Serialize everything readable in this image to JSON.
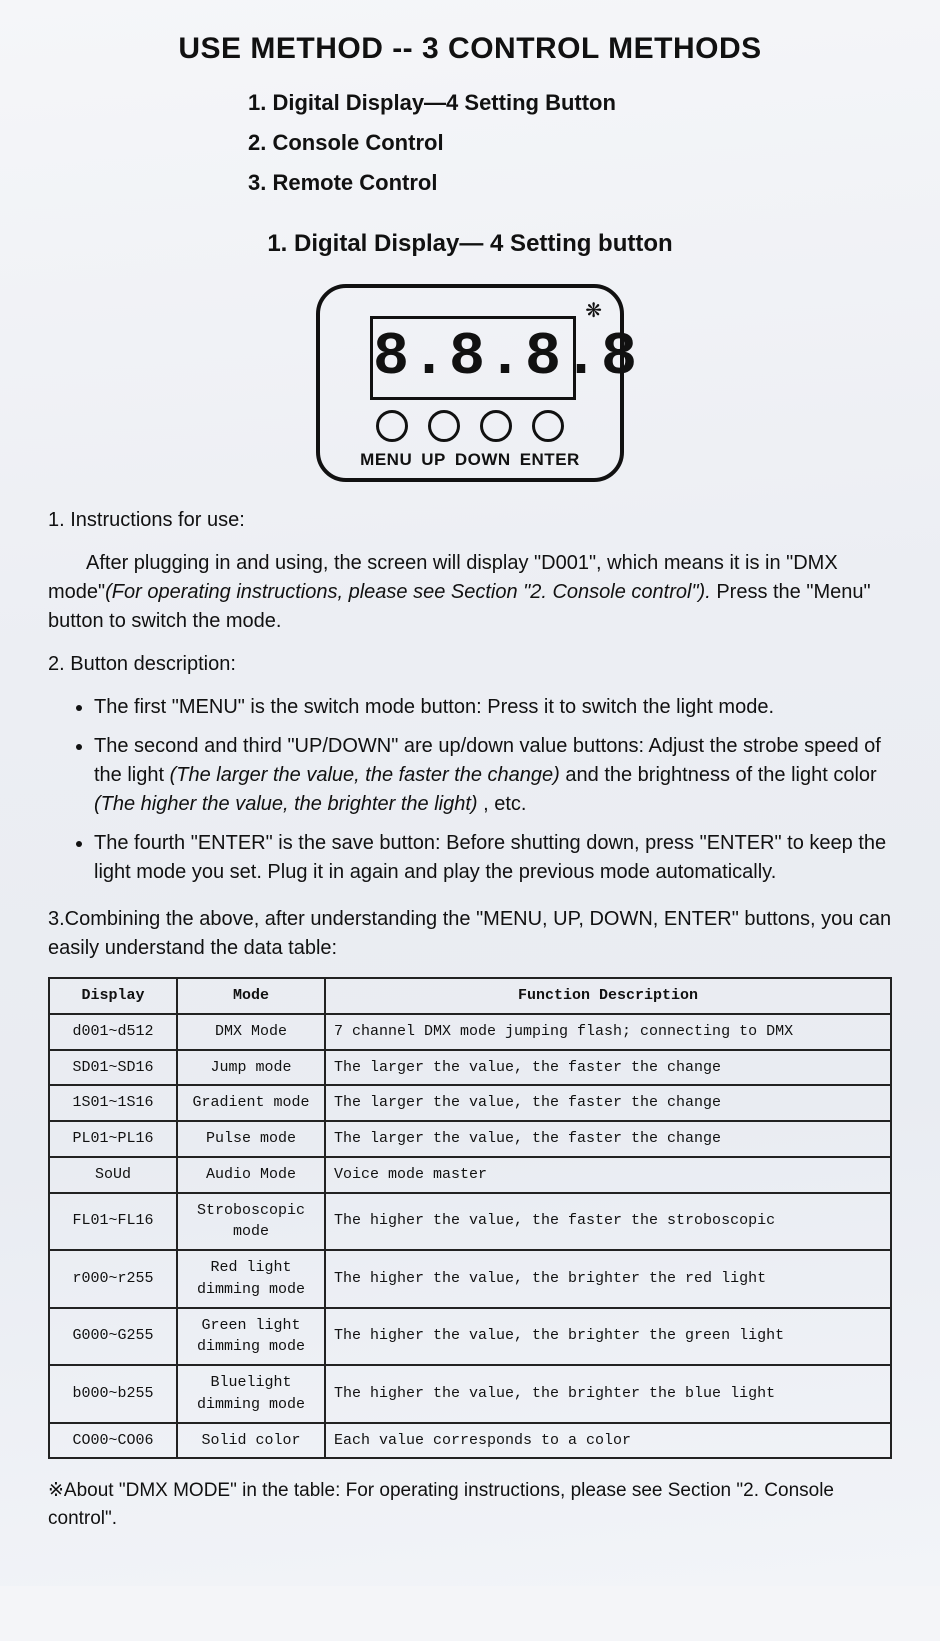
{
  "title": "USE METHOD -- 3 CONTROL METHODS",
  "methods": [
    "1.  Digital Display—4 Setting Button",
    "2.  Console Control",
    "3.  Remote Control"
  ],
  "section1_heading": "1. Digital Display— 4 Setting button",
  "panel": {
    "digits": "8.8.8.8",
    "button_labels": [
      "MENU",
      "UP",
      "DOWN",
      "ENTER"
    ],
    "decoration": "❋"
  },
  "instructions": {
    "h1": "1.  Instructions for use:",
    "p1a": "After plugging in and using, the screen will display \"D001\", which means it is in \"DMX mode\"",
    "p1b_italic": "(For operating instructions, please see Section \"2. Console control\").",
    "p1c": " Press the \"Menu\" button to switch the mode."
  },
  "buttons": {
    "h2": "2.  Button description:",
    "items": [
      {
        "pre": "The first \"MENU\" is the switch mode button: Press it to switch the light mode.",
        "ital": "",
        "post": ""
      },
      {
        "pre": "The second and third \"UP/DOWN\" are up/down value buttons: Adjust the strobe speed of the light ",
        "ital": "(The larger the value, the faster the change)",
        "mid": " and the brightness of the light color ",
        "ital2": "(The higher the value, the brighter the light)",
        "post": " , etc."
      },
      {
        "pre": "The fourth \"ENTER\" is the save button: Before shutting down, press \"ENTER\" to keep the light mode you set. Plug it in again and play the previous mode automatically.",
        "ital": "",
        "post": ""
      }
    ]
  },
  "combine": {
    "h3": "3.Combining the above, after understanding the \"MENU, UP, DOWN, ENTER\" buttons, you can easily understand the data table:"
  },
  "table": {
    "headers": [
      "Display",
      "Mode",
      "Function Description"
    ],
    "rows": [
      [
        "d001~d512",
        "DMX Mode",
        "7 channel DMX mode jumping flash; connecting to DMX"
      ],
      [
        "SD01~SD16",
        "Jump mode",
        "The larger the value, the faster the change"
      ],
      [
        "1S01~1S16",
        "Gradient mode",
        "The larger the value, the faster the change"
      ],
      [
        "PL01~PL16",
        "Pulse mode",
        "The larger the value, the faster the change"
      ],
      [
        "SoUd",
        "Audio Mode",
        "Voice mode master"
      ],
      [
        "FL01~FL16",
        "Stroboscopic mode",
        "The higher the value, the faster the stroboscopic"
      ],
      [
        "r000~r255",
        "Red light dimming mode",
        "The higher the value, the brighter the red light"
      ],
      [
        "G000~G255",
        "Green light dimming mode",
        "The higher the value, the brighter the green light"
      ],
      [
        "b000~b255",
        "Bluelight dimming mode",
        "The higher the value, the brighter the blue light"
      ],
      [
        "CO00~CO06",
        "Solid color",
        "Each value corresponds to a color"
      ]
    ]
  },
  "footnote": "※About \"DMX MODE\" in the table: For operating instructions, please see Section \"2. Console control\"."
}
